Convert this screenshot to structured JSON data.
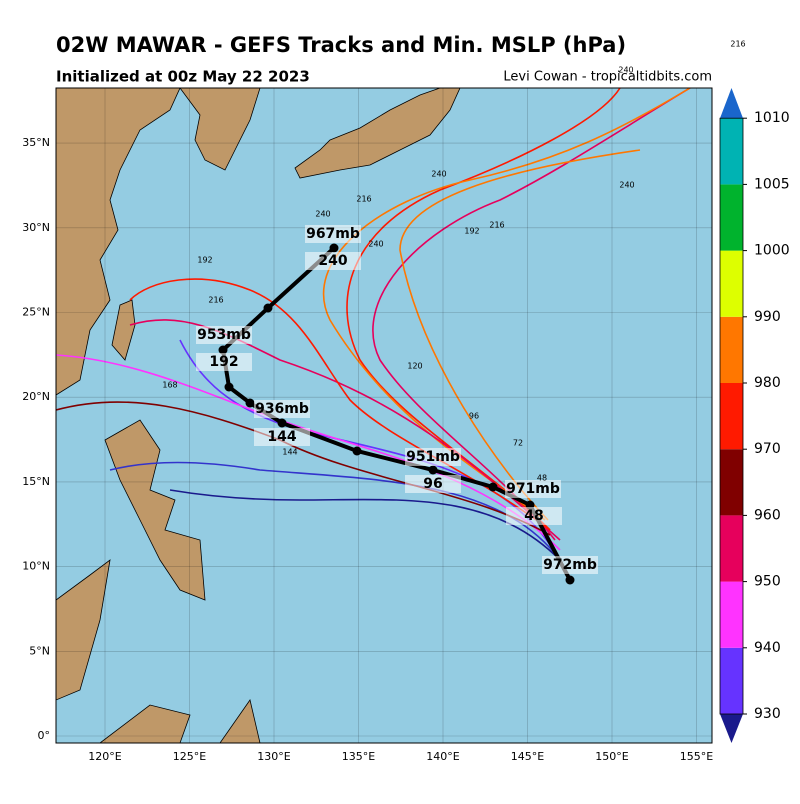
{
  "header": {
    "title": "02W MAWAR - GEFS Tracks and Min. MSLP (hPa)",
    "subtitle": "Initialized at 00z May 22 2023",
    "credit": "Levi Cowan - tropicaltidbits.com"
  },
  "axes": {
    "lon_ticks": [
      {
        "value": 120,
        "label": "120°E"
      },
      {
        "value": 125,
        "label": "125°E"
      },
      {
        "value": 130,
        "label": "130°E"
      },
      {
        "value": 135,
        "label": "135°E"
      },
      {
        "value": 140,
        "label": "140°E"
      },
      {
        "value": 145,
        "label": "145°E"
      },
      {
        "value": 150,
        "label": "150°E"
      },
      {
        "value": 155,
        "label": "155°E"
      }
    ],
    "lat_ticks": [
      {
        "value": 0,
        "label": "0°"
      },
      {
        "value": 5,
        "label": "5°N"
      },
      {
        "value": 10,
        "label": "10°N"
      },
      {
        "value": 15,
        "label": "15°N"
      },
      {
        "value": 20,
        "label": "20°N"
      },
      {
        "value": 25,
        "label": "25°N"
      },
      {
        "value": 30,
        "label": "30°N"
      },
      {
        "value": 35,
        "label": "35°N"
      }
    ]
  },
  "colorbar": {
    "ticks": [
      930,
      940,
      950,
      960,
      970,
      980,
      990,
      1000,
      1005,
      1010
    ],
    "colors": [
      "#6633ff",
      "#ff33ff",
      "#e6005c",
      "#800000",
      "#ff1a00",
      "#ff7700",
      "#ddff00",
      "#00b32d",
      "#00b3b3"
    ]
  },
  "mean_track": {
    "annotations": [
      "972mb",
      "48",
      "971mb",
      "96",
      "951mb",
      "144",
      "936mb",
      "192",
      "953mb",
      "240",
      "967mb"
    ]
  },
  "member_labels": [
    "216",
    "240",
    "240",
    "240",
    "240",
    "216",
    "216",
    "192",
    "168",
    "144",
    "120",
    "96",
    "72",
    "48",
    "240",
    "216",
    "192"
  ]
}
